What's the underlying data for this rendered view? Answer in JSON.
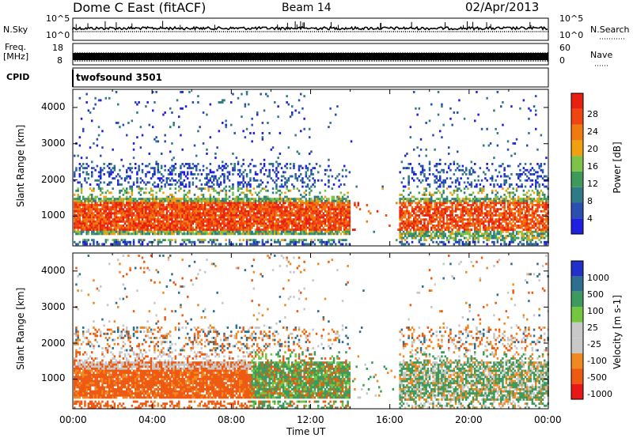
{
  "header": {
    "title": "Dome C East (fitACF)",
    "beam": "Beam 14",
    "date": "02/Apr/2013"
  },
  "left_labels": {
    "nsky": "N.Sky",
    "freq": "Freq.",
    "freq_unit": "[MHz]",
    "cpid": "CPID"
  },
  "right_labels": {
    "nsearch": "N.Search",
    "nave": "Nave"
  },
  "cpid_name": "twofsound 3501",
  "colors": {
    "power": [
      "#1f1fe0",
      "#2a4fb0",
      "#2f7a86",
      "#3f9a5a",
      "#7ec24a",
      "#f0a010",
      "#f07a10",
      "#f04510",
      "#e82010"
    ],
    "velocity": [
      "#e81818",
      "#ee5a12",
      "#f08a20",
      "#c8c8c8",
      "#c8c8c8",
      "#74c640",
      "#3e9a5c",
      "#2f6e8e",
      "#2030c8"
    ]
  },
  "chart_data": [
    {
      "type": "line",
      "panel": "noise",
      "yticks_left": [
        "10^5",
        "10^0"
      ],
      "yticks_right": [
        "10^5",
        "10^0"
      ]
    },
    {
      "type": "line",
      "panel": "frequency",
      "yticks_left": [
        "18",
        "8"
      ],
      "yticks_right": [
        "60",
        "0"
      ]
    },
    {
      "type": "heatmap",
      "panel": "power",
      "xlabel": "",
      "ylabel": "Slant Range [km]",
      "yticks": [
        4000,
        3000,
        2000,
        1000
      ],
      "ylim": [
        180,
        4500
      ],
      "colorbar": {
        "label": "Power [dB]",
        "ticks": [
          "28",
          "24",
          "20",
          "16",
          "12",
          "8",
          "4"
        ]
      }
    },
    {
      "type": "heatmap",
      "panel": "velocity",
      "xlabel": "Time UT",
      "ylabel": "Slant Range [km]",
      "xticks": [
        "00:00",
        "04:00",
        "08:00",
        "12:00",
        "16:00",
        "20:00",
        "00:00"
      ],
      "yticks": [
        4000,
        3000,
        2000,
        1000
      ],
      "ylim": [
        180,
        4500
      ],
      "colorbar": {
        "label": "Velocity [m s-1]",
        "ticks": [
          "1000",
          "500",
          "100",
          "25",
          "-25",
          "-100",
          "-500",
          "-1000"
        ]
      }
    }
  ]
}
